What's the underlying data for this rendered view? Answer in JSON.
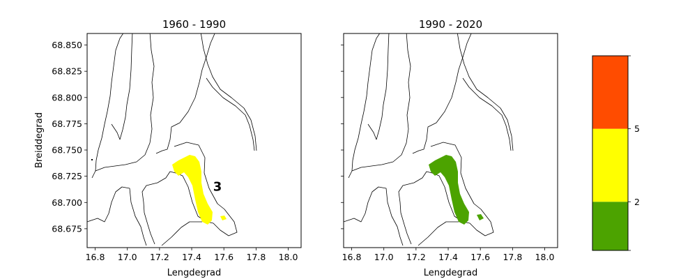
{
  "chart_data": [
    {
      "type": "map",
      "title": "1960 - 1990",
      "xlabel": "Lengdegrad",
      "ylabel": "Breiddegrad",
      "xlim": [
        16.75,
        18.08
      ],
      "ylim": [
        68.657,
        68.861
      ],
      "xticks": [
        "16.8",
        "17.0",
        "17.2",
        "17.4",
        "17.6",
        "17.8",
        "18.0"
      ],
      "yticks": [
        "68.675",
        "68.700",
        "68.725",
        "68.750",
        "68.775",
        "68.800",
        "68.825",
        "68.850"
      ],
      "annotation": {
        "text": "3",
        "x": 17.56,
        "y": 68.715
      },
      "region_color": "#ffff00"
    },
    {
      "type": "map",
      "title": "1990 - 2020",
      "xlabel": "Lengdegrad",
      "ylabel": "",
      "xlim": [
        16.75,
        18.08
      ],
      "ylim": [
        68.657,
        68.861
      ],
      "xticks": [
        "16.8",
        "17.0",
        "17.2",
        "17.4",
        "17.6",
        "17.8",
        "18.0"
      ],
      "yticks": [
        "68.675",
        "68.700",
        "68.725",
        "68.750",
        "68.775",
        "68.800",
        "68.825",
        "68.850"
      ],
      "annotation": null,
      "region_color": "#4ca300"
    }
  ],
  "colorbar": {
    "segments": [
      {
        "from": 0,
        "to": 2,
        "color": "#4ca300"
      },
      {
        "from": 2,
        "to": 5,
        "color": "#ffff00"
      },
      {
        "from": 5,
        "to": 8,
        "color": "#ff4c00"
      }
    ],
    "tick_labels": [
      "2",
      "5"
    ]
  }
}
